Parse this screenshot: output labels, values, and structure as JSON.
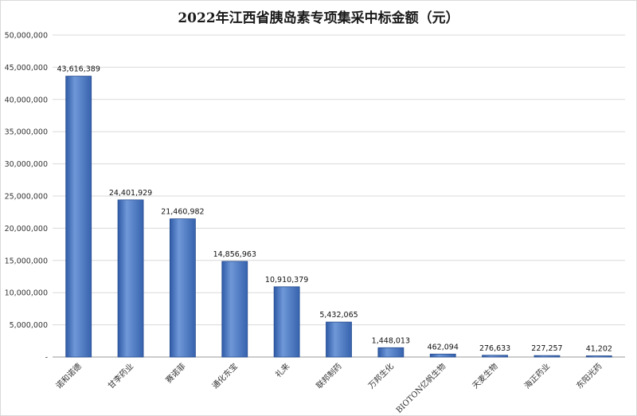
{
  "chart_data": {
    "type": "bar",
    "title": "2022年江西省胰岛素专项集采中标金额（元）",
    "categories": [
      "诺和诺德",
      "甘李药业",
      "赛诺菲",
      "通化东宝",
      "礼来",
      "联邦制药",
      "万邦生化",
      "BIOTON亿帆生物",
      "天麦生物",
      "海正药业",
      "东阳光药"
    ],
    "values": [
      43616389,
      24401929,
      21460982,
      14856963,
      10910379,
      5432065,
      1448013,
      462094,
      276633,
      227257,
      41202
    ],
    "data_labels": [
      "43,616,389",
      "24,401,929",
      "21,460,982",
      "14,856,963",
      "10,910,379",
      "5,432,065",
      "1,448,013",
      "462,094",
      "276,633",
      "227,257",
      "41,202"
    ],
    "ylim": [
      0,
      50000000
    ],
    "y_ticks": [
      "-",
      "5,000,000",
      "10,000,000",
      "15,000,000",
      "20,000,000",
      "25,000,000",
      "30,000,000",
      "35,000,000",
      "40,000,000",
      "45,000,000",
      "50,000,000"
    ],
    "xlabel": "",
    "ylabel": "",
    "grid": true,
    "bar_color": "#4a78c2"
  }
}
